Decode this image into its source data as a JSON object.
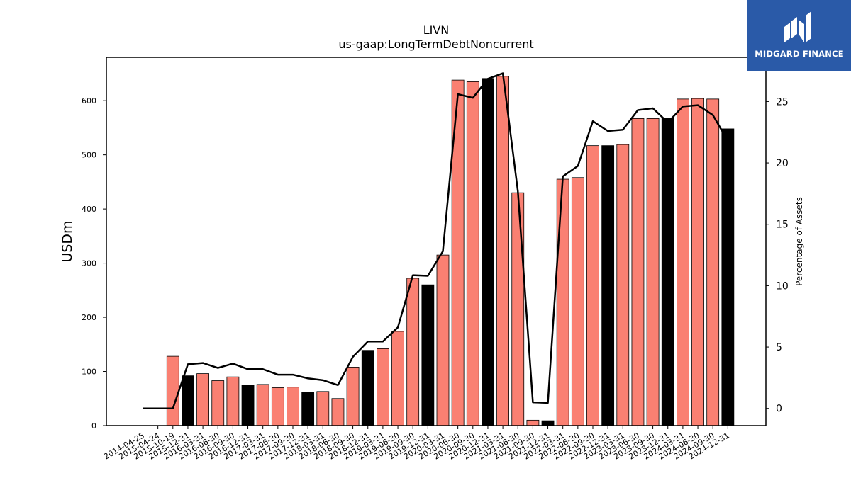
{
  "chart_data": {
    "type": "bar",
    "title": "LIVN",
    "subtitle": "us-gaap:LongTermDebtNoncurrent",
    "ylabel": "USDm",
    "ylabel_right": "Percentage of Assets",
    "ylim": [
      0,
      680
    ],
    "ylim_right": [
      -1.4,
      28.6
    ],
    "yticks": [
      0,
      100,
      200,
      300,
      400,
      500,
      600
    ],
    "yticks_right": [
      0,
      5,
      10,
      15,
      20,
      25
    ],
    "grid": false,
    "colors": {
      "quarter": "#fa8072",
      "year_end": "#000000",
      "line": "#000000"
    },
    "categories": [
      "2014-04-25",
      "2015-04-24",
      "2015-10-19",
      "2015-12-31",
      "2016-03-31",
      "2016-06-30",
      "2016-09-30",
      "2016-12-31",
      "2017-03-31",
      "2017-06-30",
      "2017-09-30",
      "2017-12-31",
      "2018-03-31",
      "2018-06-30",
      "2018-09-30",
      "2018-12-31",
      "2019-03-31",
      "2019-06-30",
      "2019-09-30",
      "2019-12-31",
      "2020-03-31",
      "2020-06-30",
      "2020-09-30",
      "2020-12-31",
      "2021-03-31",
      "2021-06-30",
      "2021-09-30",
      "2021-12-31",
      "2022-03-31",
      "2022-06-30",
      "2022-09-30",
      "2022-12-31",
      "2023-03-31",
      "2023-06-30",
      "2023-09-30",
      "2023-12-31",
      "2024-03-31",
      "2024-06-30",
      "2024-09-30",
      "2024-12-31"
    ],
    "series": [
      {
        "kind": "bar",
        "values": [
          0,
          0,
          128,
          92,
          96,
          83,
          90,
          75,
          76,
          70,
          71,
          62,
          63,
          50,
          108,
          139,
          142,
          174,
          272,
          260,
          315,
          638,
          635,
          641,
          645,
          430,
          10,
          9,
          455,
          458,
          517,
          517,
          519,
          567,
          567,
          567,
          603,
          604,
          603,
          548
        ],
        "year_end": [
          false,
          false,
          false,
          true,
          false,
          false,
          false,
          true,
          false,
          false,
          false,
          true,
          false,
          false,
          false,
          true,
          false,
          false,
          false,
          true,
          false,
          false,
          false,
          true,
          false,
          false,
          false,
          true,
          false,
          false,
          false,
          true,
          false,
          false,
          false,
          true,
          false,
          false,
          false,
          true
        ]
      },
      {
        "kind": "line",
        "axis": "right",
        "values": [
          0,
          0,
          0,
          3.6,
          3.7,
          3.3,
          3.65,
          3.2,
          3.2,
          2.75,
          2.75,
          2.45,
          2.3,
          1.9,
          4.2,
          5.45,
          5.45,
          6.6,
          10.85,
          10.8,
          12.8,
          25.6,
          25.3,
          26.85,
          27.3,
          17.7,
          0.5,
          0.45,
          18.9,
          19.75,
          23.4,
          22.6,
          22.7,
          24.3,
          24.45,
          23.3,
          24.6,
          24.7,
          23.9,
          21.8
        ]
      }
    ]
  },
  "brand": {
    "name": "MIDGARD FINANCE",
    "icon": "midgard-logo-icon"
  }
}
